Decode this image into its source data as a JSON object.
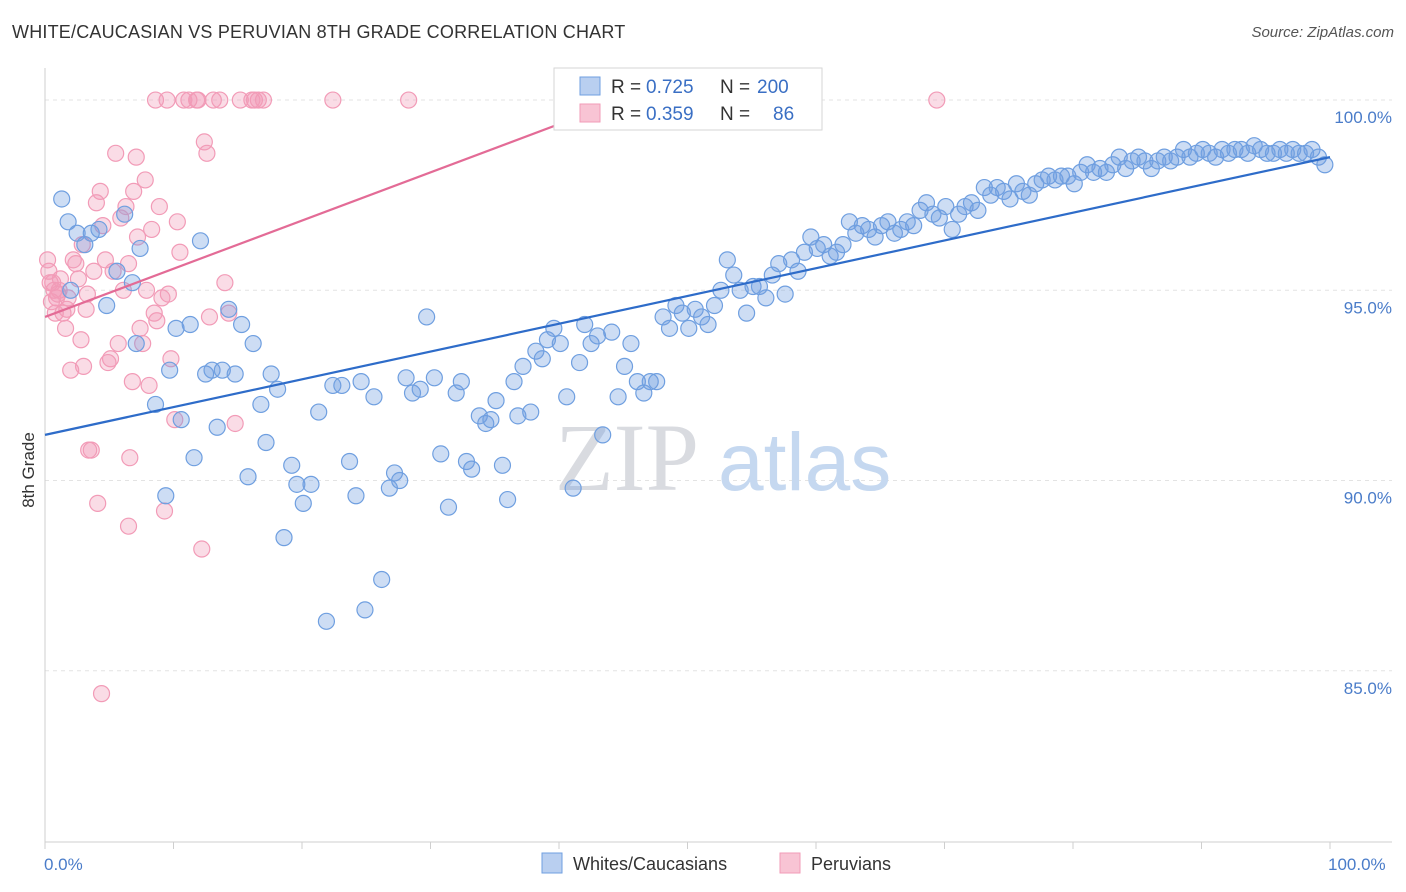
{
  "title": "WHITE/CAUCASIAN VS PERUVIAN 8TH GRADE CORRELATION CHART",
  "source": "Source: ZipAtlas.com",
  "watermark": {
    "zip": "ZIP",
    "atlas": "atlas"
  },
  "colors": {
    "white": "#6f9fe0",
    "white_line": "#2e6cc9",
    "peru": "#f29bb7",
    "peru_line": "#e36b96"
  },
  "chart_data": {
    "type": "scatter",
    "ylabel": "8th Grade",
    "xlim": [
      0,
      100
    ],
    "ylim": [
      80.5,
      101
    ],
    "y_ticks": [
      {
        "value": 100,
        "label": "100.0%"
      },
      {
        "value": 95,
        "label": "95.0%"
      },
      {
        "value": 90,
        "label": "90.0%"
      },
      {
        "value": 85,
        "label": "85.0%"
      }
    ],
    "x_tick_labels": {
      "left": "0.0%",
      "right": "100.0%"
    },
    "x_minor_ticks": [
      0,
      10,
      20,
      30,
      40,
      50,
      60,
      70,
      80,
      90,
      100
    ],
    "legend": {
      "rows": [
        {
          "r_label": "R =",
          "r": "0.725",
          "n_label": "N =",
          "n": "200"
        },
        {
          "r_label": "R =",
          "r": "0.359",
          "n_label": "N =",
          "n": "86"
        }
      ]
    },
    "series": [
      {
        "name": "Whites/Caucasians",
        "trend": [
          [
            0,
            91.2
          ],
          [
            100,
            98.5
          ]
        ],
        "points": [
          [
            1.3,
            97.4
          ],
          [
            1.8,
            96.8
          ],
          [
            2.5,
            96.5
          ],
          [
            3.1,
            96.2
          ],
          [
            3.6,
            96.5
          ],
          [
            4.2,
            96.6
          ],
          [
            2.0,
            95.0
          ],
          [
            4.8,
            94.6
          ],
          [
            5.6,
            95.5
          ],
          [
            6.2,
            97.0
          ],
          [
            7.4,
            96.1
          ],
          [
            6.8,
            95.2
          ],
          [
            7.1,
            93.6
          ],
          [
            8.6,
            92.0
          ],
          [
            9.4,
            89.6
          ],
          [
            9.7,
            92.9
          ],
          [
            10.2,
            94.0
          ],
          [
            10.6,
            91.6
          ],
          [
            11.3,
            94.1
          ],
          [
            11.6,
            90.6
          ],
          [
            12.1,
            96.3
          ],
          [
            12.5,
            92.8
          ],
          [
            13.0,
            92.9
          ],
          [
            13.4,
            91.4
          ],
          [
            13.8,
            92.9
          ],
          [
            14.3,
            94.5
          ],
          [
            14.8,
            92.8
          ],
          [
            15.3,
            94.1
          ],
          [
            15.8,
            90.1
          ],
          [
            16.2,
            93.6
          ],
          [
            16.8,
            92.0
          ],
          [
            17.2,
            91.0
          ],
          [
            17.6,
            92.8
          ],
          [
            18.1,
            92.4
          ],
          [
            18.6,
            88.5
          ],
          [
            19.2,
            90.4
          ],
          [
            19.6,
            89.9
          ],
          [
            20.1,
            89.4
          ],
          [
            20.7,
            89.9
          ],
          [
            21.3,
            91.8
          ],
          [
            21.9,
            86.3
          ],
          [
            22.4,
            92.5
          ],
          [
            23.1,
            92.5
          ],
          [
            23.7,
            90.5
          ],
          [
            24.2,
            89.6
          ],
          [
            24.6,
            92.6
          ],
          [
            24.9,
            86.6
          ],
          [
            25.6,
            92.2
          ],
          [
            26.2,
            87.4
          ],
          [
            26.8,
            89.8
          ],
          [
            27.2,
            90.2
          ],
          [
            27.6,
            90.0
          ],
          [
            28.1,
            92.7
          ],
          [
            28.6,
            92.3
          ],
          [
            29.2,
            92.4
          ],
          [
            29.7,
            94.3
          ],
          [
            30.3,
            92.7
          ],
          [
            30.8,
            90.7
          ],
          [
            31.4,
            89.3
          ],
          [
            32.0,
            92.3
          ],
          [
            32.4,
            92.6
          ],
          [
            32.8,
            90.5
          ],
          [
            33.2,
            90.3
          ],
          [
            33.8,
            91.7
          ],
          [
            34.3,
            91.5
          ],
          [
            34.7,
            91.6
          ],
          [
            35.1,
            92.1
          ],
          [
            35.6,
            90.4
          ],
          [
            36.0,
            89.5
          ],
          [
            36.5,
            92.6
          ],
          [
            36.8,
            91.7
          ],
          [
            37.2,
            93.0
          ],
          [
            37.8,
            91.8
          ],
          [
            38.2,
            93.4
          ],
          [
            38.7,
            93.2
          ],
          [
            39.1,
            93.7
          ],
          [
            39.6,
            94.0
          ],
          [
            40.1,
            93.6
          ],
          [
            40.6,
            92.2
          ],
          [
            41.1,
            89.8
          ],
          [
            41.6,
            93.1
          ],
          [
            42.0,
            94.1
          ],
          [
            42.5,
            93.6
          ],
          [
            43.0,
            93.8
          ],
          [
            43.4,
            91.2
          ],
          [
            44.1,
            93.9
          ],
          [
            44.6,
            92.2
          ],
          [
            45.1,
            93.0
          ],
          [
            45.6,
            93.6
          ],
          [
            46.1,
            92.6
          ],
          [
            46.6,
            92.3
          ],
          [
            47.1,
            92.6
          ],
          [
            47.6,
            92.6
          ],
          [
            48.1,
            94.3
          ],
          [
            48.6,
            94.0
          ],
          [
            49.1,
            94.6
          ],
          [
            49.6,
            94.4
          ],
          [
            50.1,
            94.0
          ],
          [
            50.6,
            94.5
          ],
          [
            51.1,
            94.3
          ],
          [
            51.6,
            94.1
          ],
          [
            52.1,
            94.6
          ],
          [
            52.6,
            95.0
          ],
          [
            53.1,
            95.8
          ],
          [
            53.6,
            95.4
          ],
          [
            54.1,
            95.0
          ],
          [
            54.6,
            94.4
          ],
          [
            55.1,
            95.1
          ],
          [
            55.6,
            95.1
          ],
          [
            56.1,
            94.8
          ],
          [
            56.6,
            95.4
          ],
          [
            57.1,
            95.7
          ],
          [
            57.6,
            94.9
          ],
          [
            58.1,
            95.8
          ],
          [
            58.6,
            95.5
          ],
          [
            59.1,
            96.0
          ],
          [
            59.6,
            96.4
          ],
          [
            60.1,
            96.1
          ],
          [
            60.6,
            96.2
          ],
          [
            61.1,
            95.9
          ],
          [
            61.6,
            96.0
          ],
          [
            62.1,
            96.2
          ],
          [
            62.6,
            96.8
          ],
          [
            63.1,
            96.5
          ],
          [
            63.6,
            96.7
          ],
          [
            64.1,
            96.6
          ],
          [
            64.6,
            96.4
          ],
          [
            65.1,
            96.7
          ],
          [
            65.6,
            96.8
          ],
          [
            66.1,
            96.5
          ],
          [
            66.6,
            96.6
          ],
          [
            67.1,
            96.8
          ],
          [
            67.6,
            96.7
          ],
          [
            68.1,
            97.1
          ],
          [
            68.6,
            97.3
          ],
          [
            69.1,
            97.0
          ],
          [
            69.6,
            96.9
          ],
          [
            70.1,
            97.2
          ],
          [
            70.6,
            96.6
          ],
          [
            71.1,
            97.0
          ],
          [
            71.6,
            97.2
          ],
          [
            72.1,
            97.3
          ],
          [
            72.6,
            97.1
          ],
          [
            73.1,
            97.7
          ],
          [
            73.6,
            97.5
          ],
          [
            74.1,
            97.7
          ],
          [
            74.6,
            97.6
          ],
          [
            75.1,
            97.4
          ],
          [
            75.6,
            97.8
          ],
          [
            76.1,
            97.6
          ],
          [
            76.6,
            97.5
          ],
          [
            77.1,
            97.8
          ],
          [
            77.6,
            97.9
          ],
          [
            78.1,
            98.0
          ],
          [
            78.6,
            97.9
          ],
          [
            79.1,
            98.0
          ],
          [
            79.6,
            98.0
          ],
          [
            80.1,
            97.8
          ],
          [
            80.6,
            98.1
          ],
          [
            81.1,
            98.3
          ],
          [
            81.6,
            98.1
          ],
          [
            82.1,
            98.2
          ],
          [
            82.6,
            98.1
          ],
          [
            83.1,
            98.3
          ],
          [
            83.6,
            98.5
          ],
          [
            84.1,
            98.2
          ],
          [
            84.6,
            98.4
          ],
          [
            85.1,
            98.5
          ],
          [
            85.6,
            98.4
          ],
          [
            86.1,
            98.2
          ],
          [
            86.6,
            98.4
          ],
          [
            87.1,
            98.5
          ],
          [
            87.6,
            98.4
          ],
          [
            88.1,
            98.5
          ],
          [
            88.6,
            98.7
          ],
          [
            89.1,
            98.5
          ],
          [
            89.6,
            98.6
          ],
          [
            90.1,
            98.7
          ],
          [
            90.6,
            98.6
          ],
          [
            91.1,
            98.5
          ],
          [
            91.6,
            98.7
          ],
          [
            92.1,
            98.6
          ],
          [
            92.6,
            98.7
          ],
          [
            93.1,
            98.7
          ],
          [
            93.6,
            98.6
          ],
          [
            94.1,
            98.8
          ],
          [
            94.6,
            98.7
          ],
          [
            95.1,
            98.6
          ],
          [
            95.6,
            98.6
          ],
          [
            96.1,
            98.7
          ],
          [
            96.6,
            98.6
          ],
          [
            97.1,
            98.7
          ],
          [
            97.6,
            98.6
          ],
          [
            98.1,
            98.6
          ],
          [
            98.6,
            98.7
          ],
          [
            99.1,
            98.5
          ],
          [
            99.6,
            98.3
          ]
        ]
      },
      {
        "name": "Peruvians",
        "trend": [
          [
            0,
            94.3
          ],
          [
            45,
            100.0
          ]
        ],
        "points": [
          [
            0.2,
            95.8
          ],
          [
            0.4,
            95.2
          ],
          [
            0.5,
            94.7
          ],
          [
            0.7,
            95.0
          ],
          [
            0.8,
            94.4
          ],
          [
            1.0,
            94.9
          ],
          [
            1.2,
            95.3
          ],
          [
            1.4,
            94.4
          ],
          [
            1.6,
            94.0
          ],
          [
            1.8,
            94.8
          ],
          [
            2.0,
            92.9
          ],
          [
            2.2,
            95.8
          ],
          [
            2.4,
            95.7
          ],
          [
            2.6,
            95.3
          ],
          [
            2.8,
            93.7
          ],
          [
            3.0,
            93.0
          ],
          [
            3.2,
            94.5
          ],
          [
            3.4,
            90.8
          ],
          [
            3.6,
            90.8
          ],
          [
            3.8,
            95.5
          ],
          [
            4.0,
            97.3
          ],
          [
            4.1,
            89.4
          ],
          [
            4.3,
            97.6
          ],
          [
            4.5,
            96.7
          ],
          [
            4.7,
            95.8
          ],
          [
            4.9,
            93.1
          ],
          [
            5.1,
            93.2
          ],
          [
            5.3,
            95.5
          ],
          [
            5.5,
            98.6
          ],
          [
            5.7,
            93.6
          ],
          [
            5.9,
            96.9
          ],
          [
            6.1,
            95.0
          ],
          [
            6.3,
            97.2
          ],
          [
            6.5,
            95.7
          ],
          [
            6.5,
            88.8
          ],
          [
            6.6,
            90.6
          ],
          [
            6.8,
            92.6
          ],
          [
            6.9,
            97.6
          ],
          [
            7.1,
            98.5
          ],
          [
            7.2,
            96.4
          ],
          [
            7.4,
            94.0
          ],
          [
            7.6,
            93.6
          ],
          [
            7.8,
            97.9
          ],
          [
            7.9,
            95.0
          ],
          [
            8.1,
            92.5
          ],
          [
            8.3,
            96.6
          ],
          [
            8.5,
            94.4
          ],
          [
            8.7,
            94.2
          ],
          [
            8.9,
            97.2
          ],
          [
            9.1,
            94.8
          ],
          [
            9.3,
            89.2
          ],
          [
            9.6,
            94.9
          ],
          [
            9.8,
            93.2
          ],
          [
            10.1,
            91.6
          ],
          [
            10.3,
            96.8
          ],
          [
            10.5,
            96.0
          ],
          [
            11.2,
            100.0
          ],
          [
            11.8,
            100.0
          ],
          [
            12.2,
            88.2
          ],
          [
            12.4,
            98.9
          ],
          [
            12.6,
            98.6
          ],
          [
            12.8,
            94.3
          ],
          [
            13.1,
            100.0
          ],
          [
            14.0,
            95.2
          ],
          [
            14.3,
            94.4
          ],
          [
            14.8,
            91.5
          ],
          [
            15.2,
            100.0
          ],
          [
            16.1,
            100.0
          ],
          [
            16.6,
            100.0
          ],
          [
            17.0,
            100.0
          ],
          [
            8.6,
            100.0
          ],
          [
            9.5,
            100.0
          ],
          [
            10.8,
            100.0
          ],
          [
            11.9,
            100.0
          ],
          [
            13.6,
            100.0
          ],
          [
            16.3,
            100.0
          ],
          [
            22.4,
            100.0
          ],
          [
            28.3,
            100.0
          ],
          [
            4.4,
            84.4
          ],
          [
            0.3,
            95.5
          ],
          [
            0.6,
            95.2
          ],
          [
            0.9,
            94.8
          ],
          [
            1.1,
            95.0
          ],
          [
            1.7,
            94.5
          ],
          [
            2.9,
            96.2
          ],
          [
            3.3,
            94.9
          ],
          [
            69.4,
            100.0
          ]
        ]
      }
    ]
  }
}
